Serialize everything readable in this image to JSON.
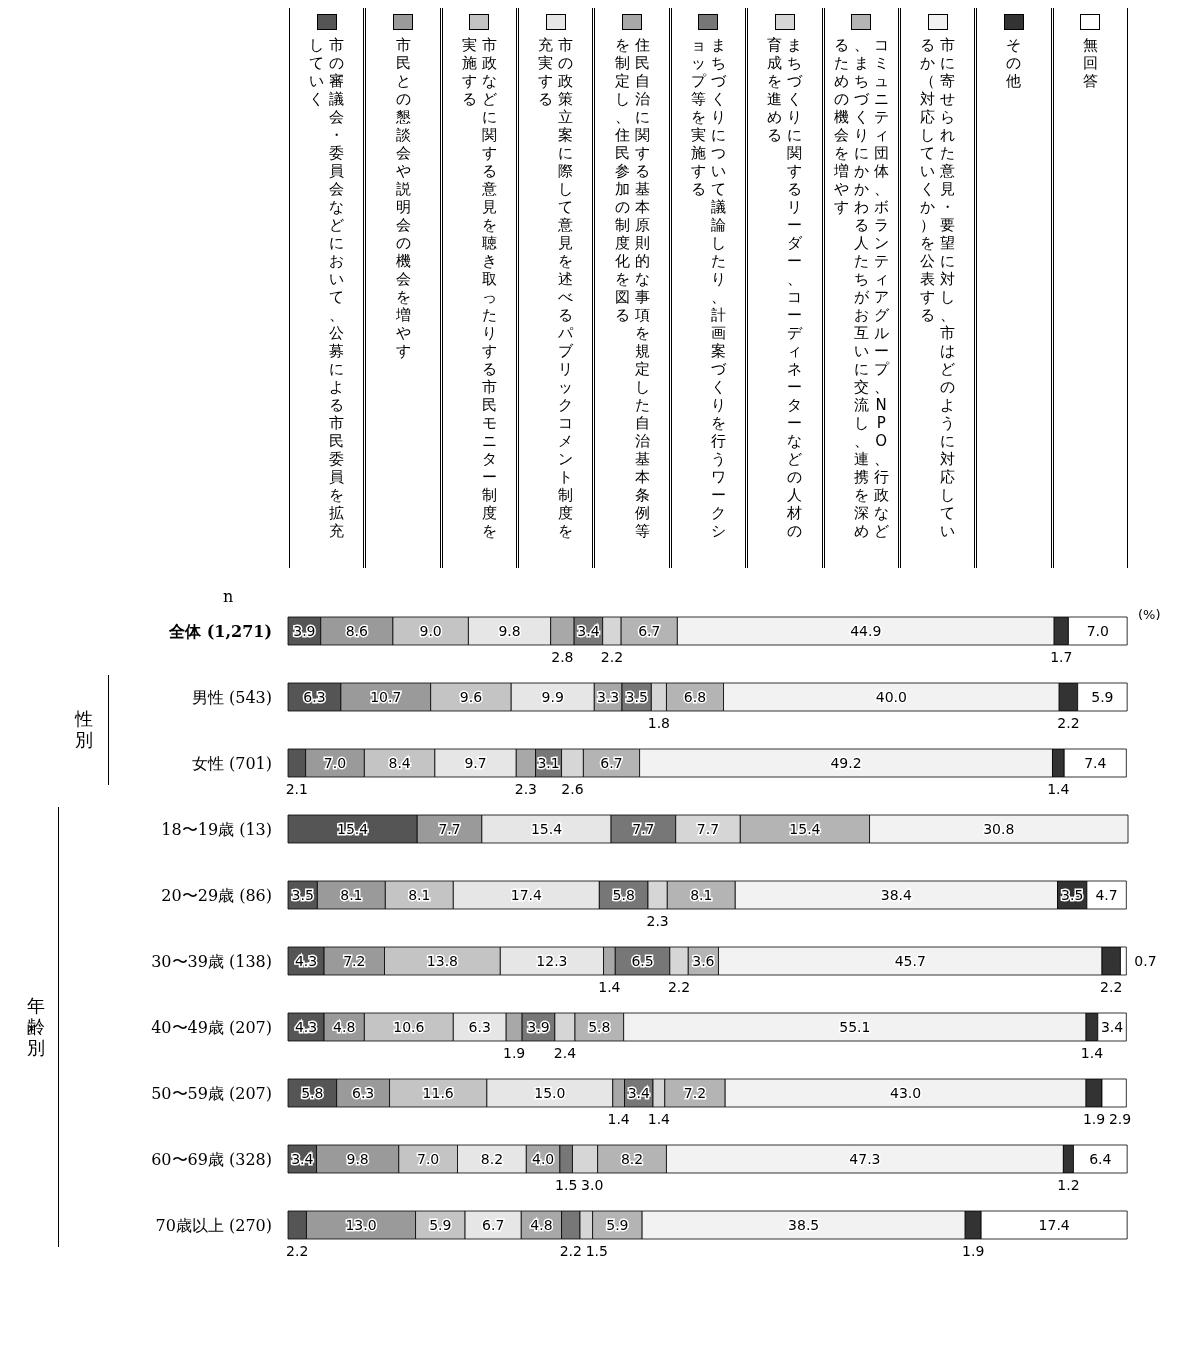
{
  "chart_data": {
    "type": "bar",
    "orientation": "horizontal",
    "stacked": true,
    "data_labels": true,
    "legend": "top",
    "categories": [
      "全体 (1,271)",
      "男性 (543)",
      "女性 (701)",
      "18〜19歳 (13)",
      "20〜29歳 (86)",
      "30〜39歳 (138)",
      "40〜49歳 (207)",
      "50〜59歳 (207)",
      "60〜69歳 (328)",
      "70歳以上 (270)"
    ],
    "annotations": [
      "n",
      "(%)",
      "性別",
      "年齢別"
    ],
    "series": [
      {
        "name": "市の審議会・委員会などにおいて、公募による市民委員を拡充していく",
        "color": "#555555",
        "values": [
          3.9,
          6.3,
          2.1,
          15.4,
          3.5,
          4.3,
          4.3,
          5.8,
          3.4,
          2.2
        ],
        "value_labels": [
          "3.9",
          "6.3",
          "2.1",
          "15.4",
          "3.5",
          "4.3",
          "4.3",
          "5.8",
          "3.4",
          "2.2"
        ]
      },
      {
        "name": "市民との懇談会や説明会の機会を増やす",
        "color": "#9a9a9a",
        "values": [
          8.6,
          10.7,
          7.0,
          7.7,
          8.1,
          7.2,
          4.8,
          6.3,
          9.8,
          13.0
        ],
        "value_labels": [
          "8.6",
          "10.7",
          "7.0",
          "7.7",
          "8.1",
          "7.2",
          "4.8",
          "6.3",
          "9.8",
          "13.0"
        ]
      },
      {
        "name": "市政などに関する意見を聴き取ったりする市民モニター制度を実施する",
        "color": "#c4c4c4",
        "values": [
          9.0,
          9.6,
          8.4,
          null,
          8.1,
          13.8,
          10.6,
          11.6,
          7.0,
          5.9
        ],
        "value_labels": [
          "9.0",
          "9.6",
          "8.4",
          null,
          "8.1",
          "13.8",
          "10.6",
          "11.6",
          "7.0",
          "5.9"
        ]
      },
      {
        "name": "市の政策立案に際して意見を述べるパブリックコメント制度を充実する",
        "color": "#e6e6e6",
        "values": [
          9.8,
          9.9,
          9.7,
          15.4,
          17.4,
          12.3,
          6.3,
          15.0,
          8.2,
          6.7
        ],
        "value_labels": [
          "9.8",
          "9.9",
          "9.7",
          "15.4",
          "17.4",
          "12.3",
          "6.3",
          "15.0",
          "8.2",
          "6.7"
        ]
      },
      {
        "name": "住民自治に関する基本原則的な事項を規定した自治基本条例等を制定し、住民参加の制度化を図る",
        "color": "#a8a8a8",
        "values": [
          2.8,
          3.3,
          2.3,
          null,
          null,
          1.4,
          1.9,
          1.4,
          4.0,
          4.8
        ],
        "value_labels": [
          "2.8",
          "3.3",
          "2.3",
          null,
          null,
          "1.4",
          "1.9",
          "1.4",
          "4.0",
          "4.8"
        ]
      },
      {
        "name": "まちづくりについて議論したり、計画案づくりを行うワークショップ等を実施する",
        "color": "#777777",
        "values": [
          3.4,
          3.5,
          3.1,
          7.7,
          5.8,
          6.5,
          3.9,
          3.4,
          1.5,
          2.2
        ],
        "value_labels": [
          "3.4",
          "3.5",
          "3.1",
          "7.7",
          "5.8",
          "6.5",
          "3.9",
          "3.4",
          "1.5",
          "2.2"
        ]
      },
      {
        "name": "まちづくりに関するリーダー、コーディネーターなどの人材の育成を進める",
        "color": "#d6d6d6",
        "values": [
          2.2,
          1.8,
          2.6,
          7.7,
          2.3,
          2.2,
          2.4,
          1.4,
          3.0,
          1.5
        ],
        "value_labels": [
          "2.2",
          "1.8",
          "2.6",
          "7.7",
          "2.3",
          "2.2",
          "2.4",
          "1.4",
          "3.0",
          "1.5"
        ]
      },
      {
        "name": "コミュニティ団体、ボランティアグループ、NPO、行政など、まちづくりにかかわる人たちがお互いに交流し、連携を深めるための機会を増やす",
        "color": "#b4b4b4",
        "values": [
          6.7,
          6.8,
          6.7,
          15.4,
          8.1,
          3.6,
          5.8,
          7.2,
          8.2,
          5.9
        ],
        "value_labels": [
          "6.7",
          "6.8",
          "6.7",
          "15.4",
          "8.1",
          "3.6",
          "5.8",
          "7.2",
          "8.2",
          "5.9"
        ]
      },
      {
        "name": "市に寄せられた意見・要望に対し、市はどのように対応しているか（対応していくか）を公表する",
        "color": "#f2f2f2",
        "values": [
          44.9,
          40.0,
          49.2,
          30.8,
          38.4,
          45.7,
          55.1,
          43.0,
          47.3,
          38.5
        ],
        "value_labels": [
          "44.9",
          "40.0",
          "49.2",
          "30.8",
          "38.4",
          "45.7",
          "55.1",
          "43.0",
          "47.3",
          "38.5"
        ]
      },
      {
        "name": "その他",
        "color": "#333333",
        "values": [
          1.7,
          2.2,
          1.4,
          null,
          3.5,
          2.2,
          1.4,
          1.9,
          1.2,
          1.9
        ],
        "value_labels": [
          "1.7",
          "2.2",
          "1.4",
          null,
          "3.5",
          "2.2",
          "1.4",
          "1.9",
          "1.2",
          "1.9"
        ]
      },
      {
        "name": "無回答",
        "color": "#ffffff",
        "values": [
          7.0,
          5.9,
          7.4,
          null,
          4.7,
          0.7,
          3.4,
          2.9,
          6.4,
          17.4
        ],
        "value_labels": [
          "7.0",
          "5.9",
          "7.4",
          null,
          "4.7",
          "0.7",
          "3.4",
          "2.9",
          "6.4",
          "17.4"
        ]
      }
    ]
  }
}
